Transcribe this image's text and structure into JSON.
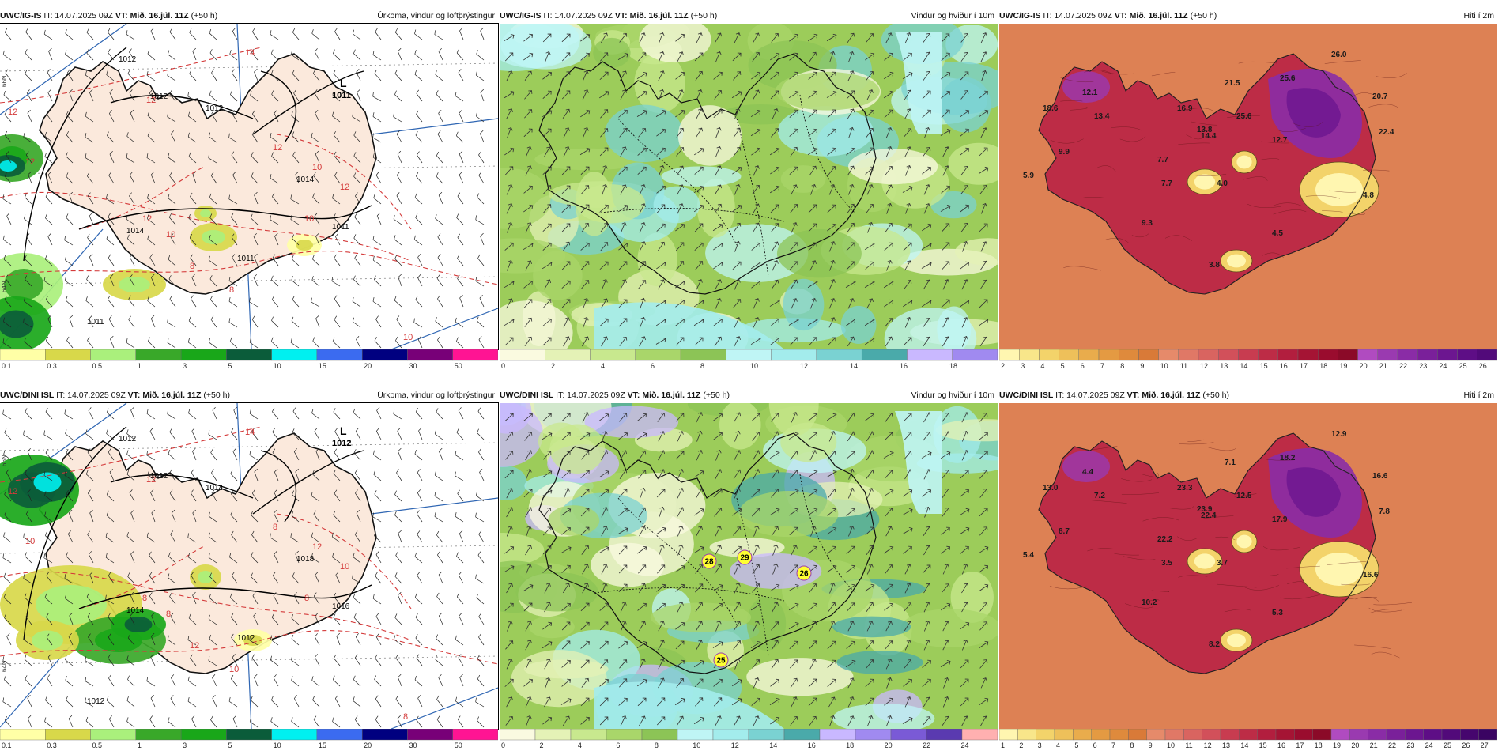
{
  "rows": [
    {
      "model": "UWC/IG-IS",
      "issue_time": "IT: 14.07.2025 09Z",
      "valid_time": "VT: Mið. 16.júl. 11Z",
      "lead": "(+50 h)",
      "panels": [
        {
          "type": "precip",
          "title": "Úrkoma, vindur og loftþrýstingur",
          "pressure_labels": [
            "1012",
            "1012",
            "1012",
            "1014",
            "1011",
            "1014",
            "1011",
            "1011"
          ],
          "low_label": "L",
          "low_value": "1011",
          "temp_labels": [
            "14",
            "12",
            "12",
            "12",
            "10",
            "12",
            "10",
            "8",
            "8",
            "10",
            "12",
            "12",
            "10"
          ],
          "lat_labels": [
            "66N",
            "64N"
          ],
          "colorbar_ticks": [
            "0.1",
            "0.3",
            "0.5",
            "1",
            "3",
            "5",
            "10",
            "15",
            "20",
            "30",
            "50"
          ]
        },
        {
          "type": "wind",
          "title": "Vindur og hviður í 10m",
          "gust_labels": [],
          "colorbar_ticks": [
            "0",
            "2",
            "4",
            "6",
            "8",
            "10",
            "12",
            "14",
            "16",
            "18"
          ]
        },
        {
          "type": "temp",
          "title": "Hiti í 2m",
          "temp_values": [
            "26.0",
            "25.6",
            "21.5",
            "20.7",
            "25.6",
            "22.4",
            "16.9",
            "13.8",
            "7.7",
            "14.4",
            "12.7",
            "18.6",
            "9.9",
            "5.9",
            "7.7",
            "4.0",
            "4.8",
            "9.3",
            "4.5",
            "3.8",
            "12.1",
            "13.4"
          ],
          "colorbar_ticks": [
            "2",
            "3",
            "4",
            "5",
            "6",
            "7",
            "8",
            "9",
            "10",
            "11",
            "12",
            "13",
            "14",
            "15",
            "16",
            "17",
            "18",
            "19",
            "20",
            "21",
            "22",
            "23",
            "24",
            "25",
            "26"
          ]
        }
      ]
    },
    {
      "model": "UWC/DINI ISL",
      "issue_time": "IT: 14.07.2025 09Z",
      "valid_time": "VT: Mið. 16.júl. 11Z",
      "lead": "(+50 h)",
      "panels": [
        {
          "type": "precip",
          "title": "Úrkoma, vindur og loftþrýstingur",
          "pressure_labels": [
            "1012",
            "1012",
            "1014",
            "1014",
            "1016",
            "1018",
            "1012",
            "1012"
          ],
          "low_label": "L",
          "low_value": "1012",
          "temp_labels": [
            "14",
            "12",
            "12",
            "10",
            "12",
            "8",
            "8",
            "12",
            "10",
            "8",
            "8",
            "10",
            "8"
          ],
          "lat_labels": [
            "66N",
            "64N"
          ],
          "colorbar_ticks": [
            "0.1",
            "0.3",
            "0.5",
            "1",
            "3",
            "5",
            "10",
            "15",
            "20",
            "30",
            "50"
          ]
        },
        {
          "type": "wind",
          "title": "Vindur og hviður í 10m",
          "gust_labels": [
            "28",
            "29",
            "26",
            "25"
          ],
          "colorbar_ticks": [
            "0",
            "2",
            "4",
            "6",
            "8",
            "10",
            "12",
            "14",
            "16",
            "18",
            "20",
            "22",
            "24"
          ]
        },
        {
          "type": "temp",
          "title": "Hiti í 2m",
          "temp_values": [
            "12.9",
            "18.2",
            "7.1",
            "16.6",
            "12.5",
            "7.8",
            "23.3",
            "23.9",
            "22.2",
            "22.4",
            "17.9",
            "13.0",
            "8.7",
            "5.4",
            "3.5",
            "3.7",
            "16.6",
            "10.2",
            "5.3",
            "8.2",
            "4.4",
            "7.2"
          ],
          "colorbar_ticks": [
            "1",
            "2",
            "3",
            "4",
            "5",
            "6",
            "7",
            "8",
            "9",
            "10",
            "11",
            "12",
            "13",
            "14",
            "15",
            "16",
            "17",
            "18",
            "19",
            "20",
            "21",
            "22",
            "23",
            "24",
            "25",
            "26",
            "27"
          ]
        }
      ]
    }
  ],
  "colors": {
    "land": "#fbe9dc",
    "coast": "#111111",
    "isobar": "#000000",
    "temp_contour": "#d43a3a",
    "meridian": "#2f66b3",
    "precip_scale": [
      "#ffffa6",
      "#d8d84a",
      "#aaf07c",
      "#39a829",
      "#19a719",
      "#0b5c3a",
      "#00f0f0",
      "#3b6bf0",
      "#000080",
      "#780078",
      "#ff1493",
      "#ff0000"
    ],
    "wind_scale_top": [
      "#fafae0",
      "#e4f2b6",
      "#c8e88e",
      "#a9d66a",
      "#8cc456",
      "#bff5f5",
      "#a3ecec",
      "#7ad2d2",
      "#4aaaaa",
      "#c9b8ff",
      "#a08af0"
    ],
    "wind_scale_bottom": [
      "#fafae0",
      "#e4f2b6",
      "#c8e88e",
      "#a9d66a",
      "#8cc456",
      "#bff5f5",
      "#a3ecec",
      "#7ad2d2",
      "#4aaaaa",
      "#c9b8ff",
      "#a08af0",
      "#7a5ad6",
      "#5a3ab0",
      "#ffb0b0"
    ],
    "temp_scale": [
      "#fff6b0",
      "#f8e68a",
      "#f3d36a",
      "#eec05a",
      "#e9ac4c",
      "#e49a42",
      "#df8a3c",
      "#d97a38",
      "#e68a6a",
      "#e07866",
      "#d96460",
      "#d2505a",
      "#c83c50",
      "#bd2c46",
      "#b21e3e",
      "#a51434",
      "#9a0c2e",
      "#8b0a28",
      "#b04bc0",
      "#9a3ab0",
      "#8a2ca6",
      "#7a209a",
      "#6c1690",
      "#5e0e86",
      "#520a7a",
      "#46066e",
      "#3a0462"
    ]
  }
}
